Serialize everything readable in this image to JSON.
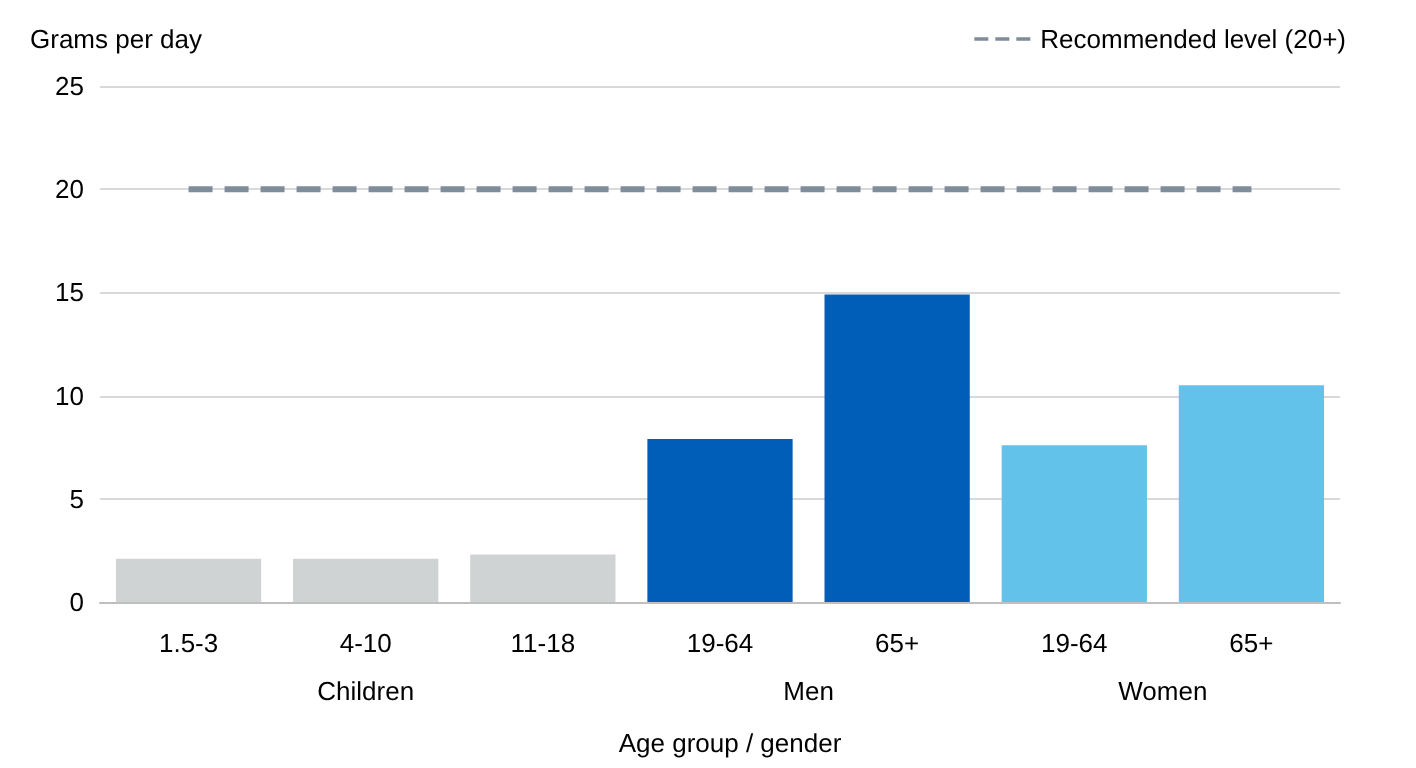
{
  "chart_data": {
    "type": "bar",
    "ylabel": "Grams per day",
    "xlabel": "Age group / gender",
    "categories": [
      "1.5-3",
      "4-10",
      "11-18",
      "19-64",
      "65+",
      "19-64",
      "65+"
    ],
    "values": [
      2.1,
      2.1,
      2.3,
      7.9,
      14.9,
      7.6,
      10.5
    ],
    "colors": [
      "#d0d3d4",
      "#d0d3d4",
      "#d0d3d4",
      "#005eb8",
      "#005eb8",
      "#62c2ea",
      "#62c2ea"
    ],
    "annotations": [
      "Children",
      "Men",
      "Women"
    ],
    "ylim": [
      0,
      25
    ],
    "yticks": [
      0,
      5,
      10,
      15,
      20,
      25
    ],
    "grid": "y",
    "legend": "top right",
    "ref_lines": [
      {
        "axis": "y",
        "value": 20,
        "label": "Recommended level (20+)",
        "color": "#7f8c99",
        "line_style": "dashed"
      }
    ]
  }
}
